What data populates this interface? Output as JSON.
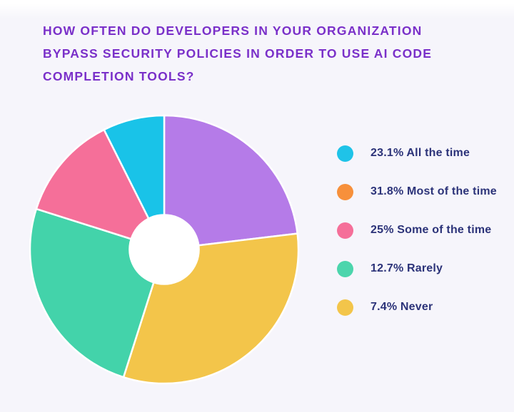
{
  "colors": {
    "background": "#f6f5fb",
    "title_text": "#7a30c9",
    "legend_text": "#2c3379",
    "slice_divider": "#ffffff",
    "donut_hole": "#ffffff"
  },
  "header": {
    "title_lines": [
      "How often do developers in your organization",
      "bypass security policies in order to use AI code",
      "completion tools?"
    ]
  },
  "chart_data": {
    "type": "pie",
    "subtype": "donut",
    "title": "How often do developers in your organization bypass security policies in order to use AI code completion tools?",
    "labels": [
      "All the time",
      "Most of the time",
      "Some of the time",
      "Rarely",
      "Never"
    ],
    "values": [
      23.1,
      31.8,
      25,
      12.7,
      7.4
    ],
    "unit": "%",
    "start_angle_deg": -90,
    "direction": "clockwise",
    "slice_colors": [
      "#b57be8",
      "#f3c54a",
      "#43d3aa",
      "#f56f99",
      "#19c3e8"
    ],
    "hole_radius_ratio": 0.265,
    "legend_position": "right",
    "note": "legend dot colors differ from drawn slice colors in source image"
  },
  "legend": {
    "items": [
      {
        "text": "23.1% All the time",
        "color": "#1fc3e8",
        "icon": "circle-swatch"
      },
      {
        "text": "31.8% Most of the time",
        "color": "#f7903b",
        "icon": "circle-swatch"
      },
      {
        "text": "25% Some of the time",
        "color": "#f56f99",
        "icon": "circle-swatch"
      },
      {
        "text": "12.7% Rarely",
        "color": "#4cd5ac",
        "icon": "circle-swatch"
      },
      {
        "text": "7.4% Never",
        "color": "#f3c54a",
        "icon": "circle-swatch"
      }
    ]
  }
}
